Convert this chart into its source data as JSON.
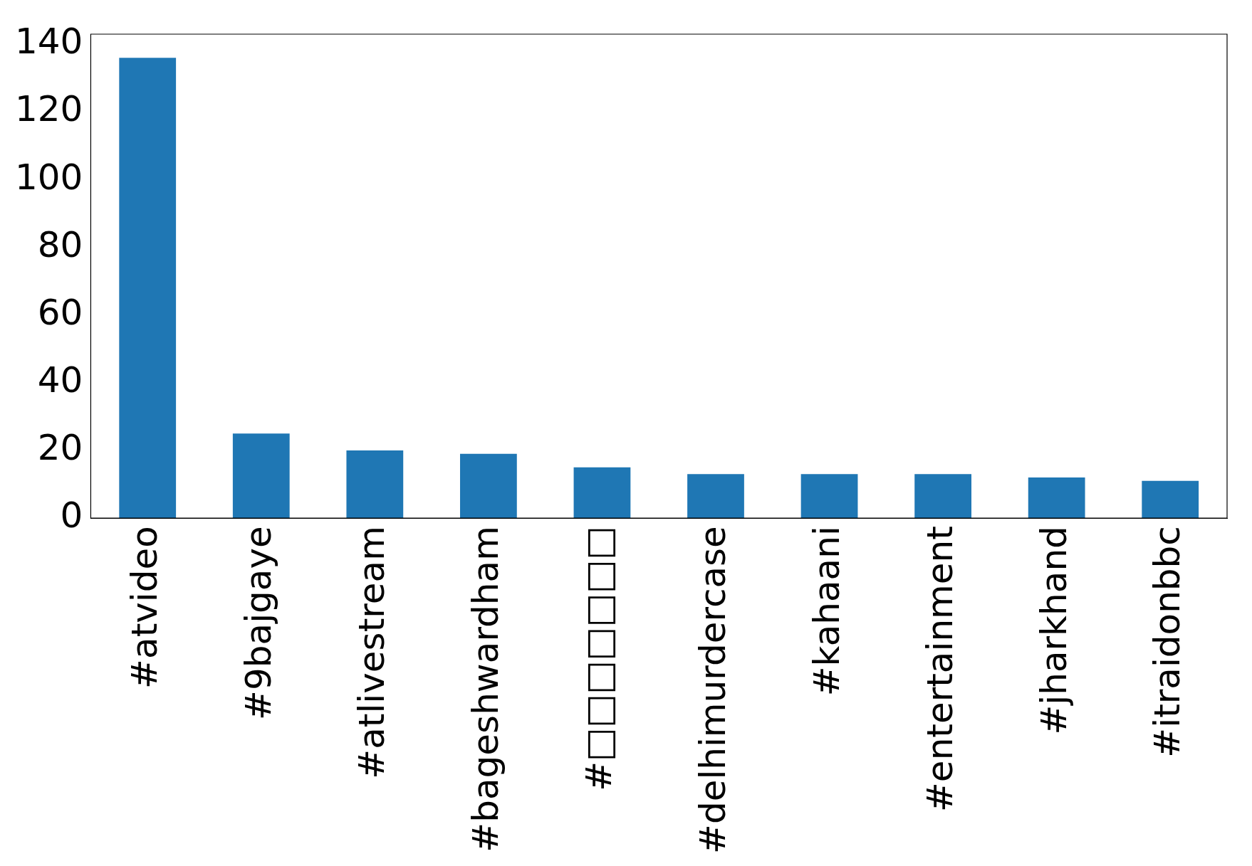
{
  "chart_data": {
    "type": "bar",
    "categories": [
      "#atvideo",
      "#9bajgaye",
      "#atlivestream",
      "#bageshwardham",
      "#□□□□□□□",
      "#delhimurdercase",
      "#kahaani",
      "#entertainment",
      "#jharkhand",
      "#itraidonbbc"
    ],
    "values": [
      136,
      25,
      20,
      19,
      15,
      13,
      13,
      13,
      12,
      11
    ],
    "color": "#1f77b4",
    "ylim": [
      0,
      143
    ],
    "yticks": [
      0,
      20,
      40,
      60,
      80,
      100,
      120,
      140
    ],
    "grid": false,
    "legend": false
  }
}
